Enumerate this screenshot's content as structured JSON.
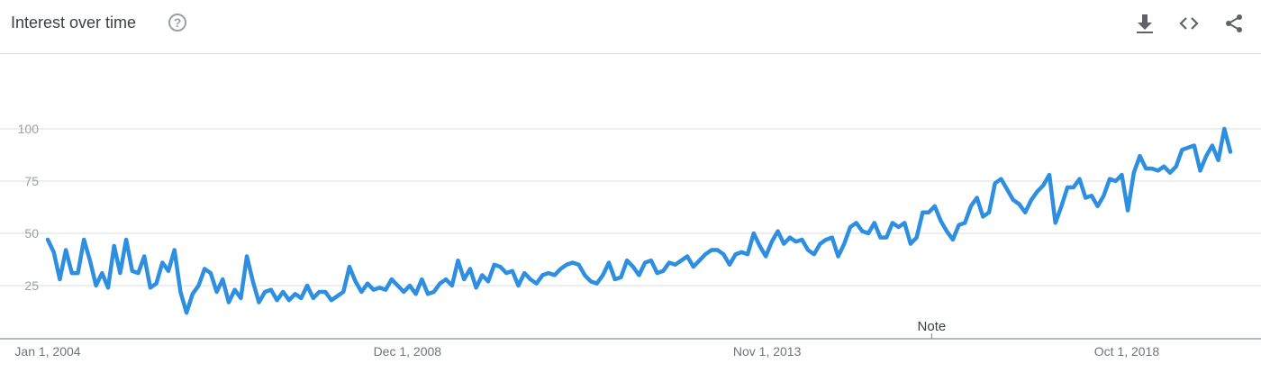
{
  "header": {
    "title": "Interest over time",
    "help_symbol": "?",
    "icons": [
      "download-icon",
      "embed-icon",
      "share-icon"
    ]
  },
  "colors": {
    "line": "#2e8fe0",
    "grid": "#dadce0",
    "axis": "#9aa0a6"
  },
  "chart_data": {
    "type": "line",
    "title": "",
    "xlabel": "",
    "ylabel": "",
    "ylim": [
      0,
      100
    ],
    "yticks": [
      25,
      50,
      75,
      100
    ],
    "x_start": "Jan 1, 2004",
    "x_end": "Mar 1, 2020",
    "x_ticks": [
      "Jan 1, 2004",
      "Dec 1, 2008",
      "Nov 1, 2013",
      "Oct 1, 2018"
    ],
    "annotation": {
      "label": "Note",
      "date": "Feb 1, 2016"
    },
    "grid": true,
    "legend": "none",
    "series": [
      {
        "values": [
          47,
          41,
          28,
          42,
          31,
          31,
          47,
          37,
          25,
          31,
          24,
          44,
          31,
          47,
          32,
          31,
          39,
          24,
          26,
          36,
          32,
          42,
          22,
          12,
          21,
          25,
          33,
          31,
          22,
          28,
          17,
          23,
          19,
          39,
          27,
          17,
          22,
          23,
          18,
          22,
          18,
          21,
          19,
          25,
          19,
          22,
          22,
          18,
          20,
          22,
          34,
          27,
          22,
          26,
          23,
          24,
          23,
          28,
          25,
          22,
          25,
          21,
          28,
          21,
          22,
          26,
          28,
          25,
          37,
          28,
          33,
          24,
          30,
          27,
          35,
          34,
          31,
          32,
          25,
          31,
          28,
          26,
          30,
          31,
          30,
          33,
          35,
          36,
          35,
          30,
          27,
          26,
          30,
          36,
          28,
          29,
          37,
          34,
          30,
          36,
          37,
          31,
          32,
          36,
          35,
          37,
          39,
          34,
          37,
          40,
          42,
          42,
          40,
          35,
          40,
          41,
          40,
          50,
          44,
          39,
          46,
          51,
          45,
          48,
          46,
          47,
          42,
          40,
          45,
          47,
          48,
          39,
          45,
          53,
          55,
          51,
          50,
          55,
          48,
          48,
          55,
          53,
          55,
          45,
          48,
          60,
          60,
          63,
          56,
          51,
          47,
          54,
          55,
          63,
          67,
          58,
          60,
          74,
          76,
          71,
          66,
          64,
          60,
          66,
          70,
          73,
          78,
          55,
          63,
          72,
          72,
          76,
          67,
          68,
          63,
          68,
          76,
          75,
          78,
          61,
          79,
          87,
          81,
          81,
          80,
          82,
          79,
          82,
          90,
          91,
          92,
          80,
          87,
          92,
          85,
          100,
          89
        ]
      }
    ]
  }
}
